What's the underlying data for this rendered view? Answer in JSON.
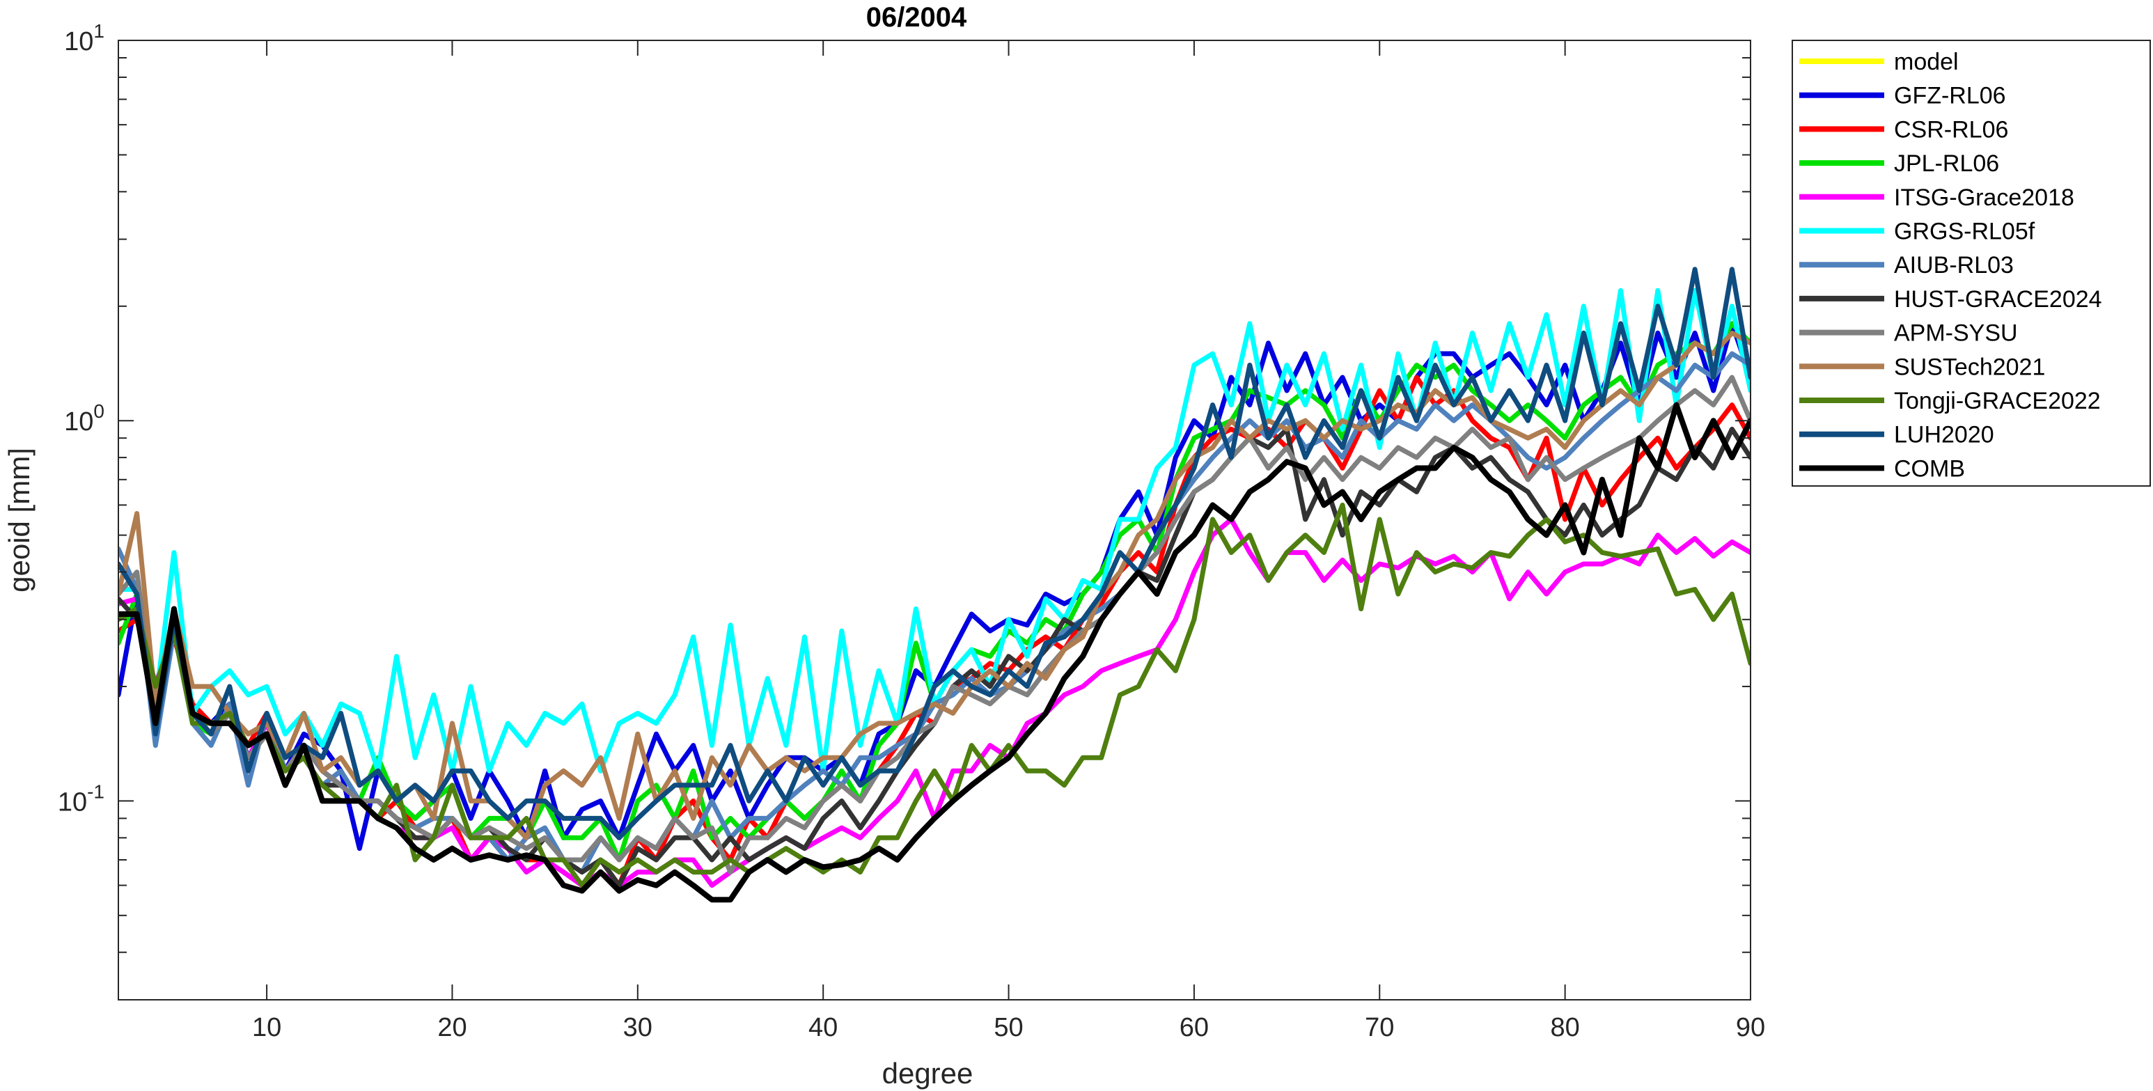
{
  "chart_data": {
    "type": "line",
    "title": "06/2004",
    "xlabel": "degree",
    "ylabel": "geoid [mm]",
    "xlim": [
      2,
      90
    ],
    "ylim": [
      0.03,
      10
    ],
    "yscale": "log",
    "xticks": [
      10,
      20,
      30,
      40,
      50,
      60,
      70,
      80,
      90
    ],
    "yticks": [
      {
        "value": 0.1,
        "base": "10",
        "exp": "-1"
      },
      {
        "value": 1,
        "base": "10",
        "exp": "0"
      },
      {
        "value": 10,
        "base": "10",
        "exp": "1"
      }
    ],
    "grid": false,
    "legend_position": "outside-top-right",
    "x_start": 2,
    "series": [
      {
        "name": "model",
        "color": "#FFFF00",
        "values": []
      },
      {
        "name": "GFZ-RL06",
        "color": "#0000E0",
        "values": [
          0.19,
          0.35,
          0.17,
          0.3,
          0.17,
          0.16,
          0.18,
          0.13,
          0.16,
          0.12,
          0.15,
          0.14,
          0.12,
          0.075,
          0.12,
          0.1,
          0.09,
          0.1,
          0.12,
          0.09,
          0.12,
          0.1,
          0.08,
          0.12,
          0.08,
          0.095,
          0.1,
          0.08,
          0.11,
          0.15,
          0.12,
          0.14,
          0.1,
          0.12,
          0.09,
          0.11,
          0.13,
          0.13,
          0.12,
          0.13,
          0.11,
          0.15,
          0.16,
          0.22,
          0.2,
          0.25,
          0.31,
          0.28,
          0.3,
          0.29,
          0.35,
          0.33,
          0.35,
          0.4,
          0.55,
          0.65,
          0.5,
          0.8,
          1.0,
          0.9,
          1.3,
          1.1,
          1.6,
          1.2,
          1.5,
          1.1,
          1.3,
          1.0,
          1.1,
          1.0,
          1.3,
          1.5,
          1.5,
          1.3,
          1.4,
          1.5,
          1.3,
          1.1,
          1.4,
          1.0,
          1.2,
          1.6,
          1.1,
          1.7,
          1.3,
          1.7,
          1.2,
          1.8,
          1.3,
          1.9,
          1.5
        ]
      },
      {
        "name": "CSR-RL06",
        "color": "#FF0000",
        "values": [
          0.28,
          0.3,
          0.2,
          0.27,
          0.18,
          0.16,
          0.17,
          0.14,
          0.17,
          0.13,
          0.14,
          0.12,
          0.11,
          0.1,
          0.09,
          0.1,
          0.085,
          0.08,
          0.09,
          0.07,
          0.08,
          0.075,
          0.07,
          0.07,
          0.065,
          0.06,
          0.07,
          0.06,
          0.08,
          0.07,
          0.09,
          0.1,
          0.08,
          0.07,
          0.09,
          0.08,
          0.1,
          0.09,
          0.1,
          0.11,
          0.1,
          0.12,
          0.14,
          0.17,
          0.16,
          0.2,
          0.21,
          0.23,
          0.22,
          0.25,
          0.27,
          0.25,
          0.3,
          0.33,
          0.4,
          0.45,
          0.4,
          0.6,
          0.8,
          0.9,
          0.95,
          0.9,
          0.95,
          0.85,
          1.0,
          0.9,
          0.75,
          0.95,
          1.2,
          1.0,
          1.3,
          1.1,
          1.2,
          1.0,
          0.9,
          0.85,
          0.7,
          0.9,
          0.55,
          0.75,
          0.6,
          0.7,
          0.8,
          0.9,
          0.75,
          0.85,
          0.95,
          1.1,
          0.9,
          1.0,
          1.4
        ]
      },
      {
        "name": "JPL-RL06",
        "color": "#00E000",
        "values": [
          0.26,
          0.35,
          0.18,
          0.3,
          0.16,
          0.15,
          0.17,
          0.13,
          0.15,
          0.12,
          0.14,
          0.12,
          0.11,
          0.1,
          0.13,
          0.1,
          0.09,
          0.1,
          0.11,
          0.08,
          0.09,
          0.09,
          0.08,
          0.1,
          0.08,
          0.08,
          0.09,
          0.07,
          0.1,
          0.11,
          0.09,
          0.12,
          0.08,
          0.09,
          0.08,
          0.09,
          0.1,
          0.09,
          0.1,
          0.12,
          0.1,
          0.14,
          0.16,
          0.26,
          0.18,
          0.22,
          0.25,
          0.24,
          0.28,
          0.26,
          0.3,
          0.28,
          0.35,
          0.4,
          0.5,
          0.55,
          0.45,
          0.7,
          0.9,
          0.95,
          1.0,
          1.2,
          1.15,
          1.1,
          1.2,
          1.1,
          0.9,
          1.2,
          1.0,
          1.2,
          1.4,
          1.3,
          1.4,
          1.2,
          1.1,
          1.0,
          1.1,
          1.0,
          0.9,
          1.1,
          1.2,
          1.3,
          1.1,
          1.4,
          1.5,
          1.6,
          1.5,
          1.8,
          1.6,
          1.9,
          2.0
        ]
      },
      {
        "name": "ITSG-Grace2018",
        "color": "#FF00FF",
        "values": [
          0.33,
          0.34,
          0.2,
          0.3,
          0.17,
          0.16,
          0.17,
          0.13,
          0.16,
          0.12,
          0.14,
          0.12,
          0.11,
          0.1,
          0.09,
          0.085,
          0.08,
          0.08,
          0.085,
          0.07,
          0.08,
          0.075,
          0.065,
          0.07,
          0.065,
          0.06,
          0.065,
          0.06,
          0.065,
          0.065,
          0.07,
          0.07,
          0.06,
          0.065,
          0.07,
          0.075,
          0.08,
          0.075,
          0.08,
          0.085,
          0.08,
          0.09,
          0.1,
          0.12,
          0.09,
          0.12,
          0.12,
          0.14,
          0.13,
          0.16,
          0.17,
          0.19,
          0.2,
          0.22,
          0.23,
          0.24,
          0.25,
          0.3,
          0.4,
          0.5,
          0.55,
          0.45,
          0.38,
          0.45,
          0.45,
          0.38,
          0.43,
          0.38,
          0.42,
          0.41,
          0.44,
          0.42,
          0.44,
          0.4,
          0.45,
          0.34,
          0.4,
          0.35,
          0.4,
          0.42,
          0.42,
          0.44,
          0.42,
          0.5,
          0.45,
          0.49,
          0.44,
          0.48,
          0.45,
          0.5,
          0.45,
          0.46
        ]
      },
      {
        "name": "GRGS-RL05f",
        "color": "#00FFFF",
        "values": [
          0.36,
          0.36,
          0.18,
          0.45,
          0.17,
          0.2,
          0.22,
          0.19,
          0.2,
          0.15,
          0.17,
          0.14,
          0.18,
          0.17,
          0.12,
          0.24,
          0.13,
          0.19,
          0.12,
          0.2,
          0.12,
          0.16,
          0.14,
          0.17,
          0.16,
          0.18,
          0.12,
          0.16,
          0.17,
          0.16,
          0.19,
          0.27,
          0.14,
          0.29,
          0.14,
          0.21,
          0.14,
          0.27,
          0.12,
          0.28,
          0.14,
          0.22,
          0.16,
          0.32,
          0.18,
          0.22,
          0.25,
          0.2,
          0.3,
          0.24,
          0.34,
          0.3,
          0.38,
          0.36,
          0.55,
          0.55,
          0.75,
          0.85,
          1.4,
          1.5,
          1.1,
          1.8,
          1.0,
          1.4,
          1.1,
          1.5,
          0.95,
          1.4,
          0.85,
          1.5,
          1.0,
          1.6,
          1.1,
          1.7,
          1.2,
          1.8,
          1.3,
          1.9,
          1.1,
          2.0,
          1.1,
          2.2,
          1.0,
          2.2,
          1.1,
          2.2,
          1.3,
          2.0,
          1.2,
          1.8,
          1.4,
          1.0
        ]
      },
      {
        "name": "AIUB-RL03",
        "color": "#4F81BD",
        "values": [
          0.46,
          0.36,
          0.14,
          0.28,
          0.16,
          0.14,
          0.18,
          0.11,
          0.17,
          0.12,
          0.13,
          0.11,
          0.12,
          0.1,
          0.1,
          0.09,
          0.085,
          0.09,
          0.09,
          0.08,
          0.08,
          0.07,
          0.08,
          0.085,
          0.07,
          0.065,
          0.08,
          0.07,
          0.08,
          0.075,
          0.09,
          0.08,
          0.1,
          0.08,
          0.09,
          0.09,
          0.1,
          0.11,
          0.12,
          0.11,
          0.13,
          0.13,
          0.14,
          0.15,
          0.18,
          0.19,
          0.21,
          0.19,
          0.2,
          0.22,
          0.25,
          0.28,
          0.3,
          0.32,
          0.35,
          0.4,
          0.5,
          0.6,
          0.7,
          0.8,
          0.9,
          1.0,
          0.9,
          1.0,
          0.85,
          0.9,
          0.8,
          1.0,
          0.9,
          1.0,
          0.95,
          1.1,
          1.0,
          1.1,
          1.0,
          0.9,
          0.8,
          0.75,
          0.8,
          0.9,
          1.0,
          1.1,
          1.2,
          1.3,
          1.2,
          1.4,
          1.3,
          1.5,
          1.4,
          1.6,
          1.4,
          1.5
        ]
      },
      {
        "name": "HUST-GRACE2024",
        "color": "#333333",
        "values": [
          0.34,
          0.3,
          0.19,
          0.28,
          0.17,
          0.15,
          0.17,
          0.13,
          0.15,
          0.12,
          0.13,
          0.11,
          0.11,
          0.1,
          0.1,
          0.09,
          0.08,
          0.08,
          0.09,
          0.08,
          0.085,
          0.075,
          0.07,
          0.08,
          0.07,
          0.065,
          0.07,
          0.06,
          0.075,
          0.07,
          0.08,
          0.08,
          0.07,
          0.08,
          0.07,
          0.075,
          0.08,
          0.075,
          0.09,
          0.1,
          0.085,
          0.1,
          0.12,
          0.14,
          0.16,
          0.2,
          0.22,
          0.2,
          0.24,
          0.22,
          0.25,
          0.3,
          0.28,
          0.3,
          0.35,
          0.4,
          0.38,
          0.5,
          0.65,
          0.7,
          0.8,
          0.9,
          0.85,
          0.95,
          0.55,
          0.7,
          0.5,
          0.65,
          0.6,
          0.7,
          0.65,
          0.8,
          0.85,
          0.75,
          0.8,
          0.7,
          0.65,
          0.55,
          0.5,
          0.6,
          0.5,
          0.55,
          0.6,
          0.75,
          0.7,
          0.85,
          0.75,
          0.95,
          0.8,
          0.9,
          0.8
        ]
      },
      {
        "name": "APM-SYSU",
        "color": "#808080",
        "values": [
          0.35,
          0.4,
          0.17,
          0.3,
          0.17,
          0.15,
          0.17,
          0.13,
          0.15,
          0.12,
          0.14,
          0.12,
          0.11,
          0.1,
          0.1,
          0.09,
          0.085,
          0.08,
          0.09,
          0.08,
          0.085,
          0.08,
          0.075,
          0.08,
          0.07,
          0.07,
          0.08,
          0.07,
          0.08,
          0.075,
          0.09,
          0.08,
          0.085,
          0.065,
          0.08,
          0.08,
          0.09,
          0.085,
          0.1,
          0.11,
          0.1,
          0.12,
          0.13,
          0.15,
          0.16,
          0.2,
          0.19,
          0.18,
          0.2,
          0.19,
          0.22,
          0.25,
          0.28,
          0.3,
          0.35,
          0.4,
          0.45,
          0.55,
          0.65,
          0.7,
          0.8,
          0.9,
          0.75,
          0.85,
          0.7,
          0.8,
          0.7,
          0.8,
          0.75,
          0.85,
          0.8,
          0.9,
          0.85,
          0.95,
          0.85,
          0.9,
          0.7,
          0.8,
          0.7,
          0.75,
          0.8,
          0.85,
          0.9,
          1.0,
          1.1,
          1.2,
          1.1,
          1.3,
          1.0,
          1.2,
          0.75
        ]
      },
      {
        "name": "SUSTech2021",
        "color": "#B07D50",
        "values": [
          0.35,
          0.57,
          0.18,
          0.32,
          0.2,
          0.2,
          0.17,
          0.15,
          0.16,
          0.13,
          0.17,
          0.12,
          0.13,
          0.11,
          0.12,
          0.1,
          0.11,
          0.09,
          0.16,
          0.1,
          0.1,
          0.09,
          0.08,
          0.11,
          0.12,
          0.11,
          0.13,
          0.09,
          0.15,
          0.1,
          0.12,
          0.09,
          0.13,
          0.11,
          0.14,
          0.12,
          0.13,
          0.12,
          0.13,
          0.13,
          0.15,
          0.16,
          0.16,
          0.17,
          0.18,
          0.17,
          0.2,
          0.22,
          0.2,
          0.23,
          0.21,
          0.25,
          0.27,
          0.35,
          0.4,
          0.5,
          0.55,
          0.7,
          0.8,
          0.85,
          1.0,
          0.9,
          1.0,
          0.95,
          1.0,
          0.9,
          1.0,
          0.95,
          1.0,
          1.1,
          1.05,
          1.2,
          1.1,
          1.15,
          1.0,
          0.95,
          0.9,
          0.95,
          0.85,
          1.0,
          1.1,
          1.2,
          1.1,
          1.3,
          1.4,
          1.6,
          1.5,
          1.7,
          1.6,
          1.7,
          1.6
        ]
      },
      {
        "name": "Tongji-GRACE2022",
        "color": "#4F7F0F",
        "values": [
          0.3,
          0.32,
          0.2,
          0.28,
          0.16,
          0.16,
          0.17,
          0.14,
          0.15,
          0.12,
          0.13,
          0.11,
          0.1,
          0.1,
          0.09,
          0.11,
          0.07,
          0.08,
          0.11,
          0.08,
          0.08,
          0.08,
          0.09,
          0.07,
          0.07,
          0.06,
          0.07,
          0.065,
          0.07,
          0.065,
          0.07,
          0.065,
          0.065,
          0.07,
          0.065,
          0.07,
          0.075,
          0.07,
          0.065,
          0.07,
          0.065,
          0.08,
          0.08,
          0.1,
          0.12,
          0.1,
          0.14,
          0.12,
          0.14,
          0.12,
          0.12,
          0.11,
          0.13,
          0.13,
          0.19,
          0.2,
          0.25,
          0.22,
          0.3,
          0.55,
          0.45,
          0.5,
          0.38,
          0.45,
          0.5,
          0.45,
          0.6,
          0.32,
          0.55,
          0.35,
          0.45,
          0.4,
          0.42,
          0.41,
          0.45,
          0.44,
          0.5,
          0.55,
          0.48,
          0.5,
          0.45,
          0.44,
          0.45,
          0.46,
          0.35,
          0.36,
          0.3,
          0.35,
          0.23,
          0.28
        ]
      },
      {
        "name": "LUH2020",
        "color": "#0F4C7F",
        "values": [
          0.42,
          0.35,
          0.15,
          0.3,
          0.17,
          0.15,
          0.2,
          0.12,
          0.17,
          0.13,
          0.14,
          0.13,
          0.17,
          0.11,
          0.12,
          0.1,
          0.11,
          0.1,
          0.12,
          0.12,
          0.1,
          0.09,
          0.1,
          0.1,
          0.09,
          0.09,
          0.09,
          0.08,
          0.09,
          0.1,
          0.11,
          0.11,
          0.11,
          0.14,
          0.1,
          0.12,
          0.1,
          0.13,
          0.11,
          0.13,
          0.11,
          0.12,
          0.12,
          0.15,
          0.2,
          0.22,
          0.2,
          0.19,
          0.22,
          0.2,
          0.26,
          0.27,
          0.3,
          0.35,
          0.45,
          0.4,
          0.5,
          0.6,
          0.75,
          1.1,
          0.8,
          1.4,
          0.9,
          1.1,
          0.8,
          1.0,
          0.85,
          1.2,
          0.9,
          1.3,
          1.0,
          1.4,
          1.1,
          1.3,
          1.0,
          1.2,
          1.0,
          1.4,
          1.0,
          1.7,
          1.1,
          1.8,
          1.2,
          2.0,
          1.4,
          2.5,
          1.3,
          2.5,
          1.3,
          2.4,
          1.5
        ]
      },
      {
        "name": "COMB",
        "color": "#000000",
        "values": [
          0.31,
          0.31,
          0.16,
          0.32,
          0.17,
          0.16,
          0.16,
          0.14,
          0.15,
          0.11,
          0.14,
          0.1,
          0.1,
          0.1,
          0.09,
          0.085,
          0.075,
          0.07,
          0.075,
          0.07,
          0.072,
          0.07,
          0.072,
          0.07,
          0.06,
          0.058,
          0.065,
          0.058,
          0.062,
          0.06,
          0.065,
          0.06,
          0.055,
          0.055,
          0.065,
          0.07,
          0.065,
          0.07,
          0.067,
          0.068,
          0.07,
          0.075,
          0.07,
          0.08,
          0.09,
          0.1,
          0.11,
          0.12,
          0.13,
          0.15,
          0.17,
          0.21,
          0.24,
          0.3,
          0.35,
          0.4,
          0.35,
          0.45,
          0.5,
          0.6,
          0.55,
          0.65,
          0.7,
          0.78,
          0.75,
          0.6,
          0.65,
          0.55,
          0.65,
          0.7,
          0.75,
          0.75,
          0.85,
          0.8,
          0.7,
          0.65,
          0.55,
          0.5,
          0.6,
          0.45,
          0.7,
          0.5,
          0.9,
          0.75,
          1.1,
          0.8,
          1.0,
          0.8,
          1.0,
          0.8
        ]
      }
    ]
  }
}
